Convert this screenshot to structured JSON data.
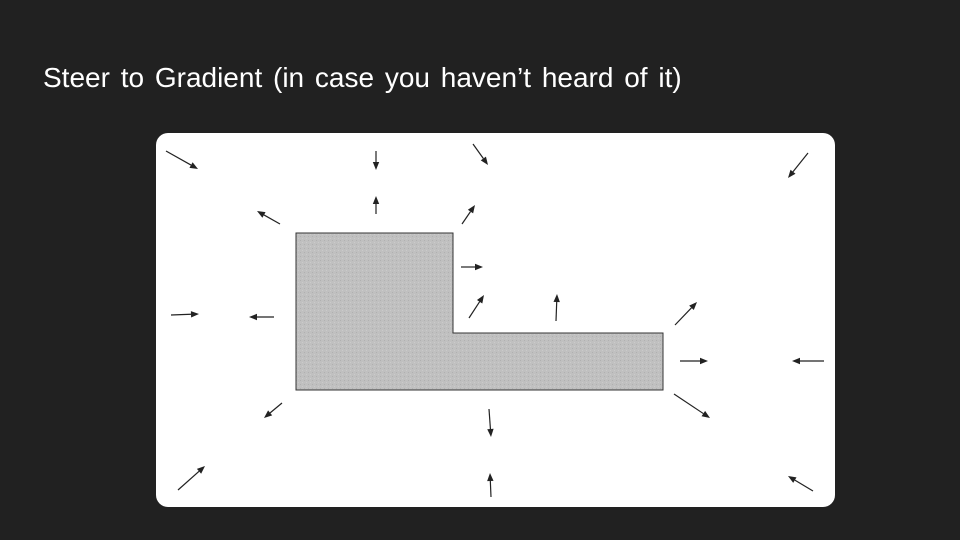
{
  "slide": {
    "title": "Steer to Gradient (in case you haven’t heard of it)",
    "background_color": "#212121"
  },
  "diagram": {
    "panel_color": "#ffffff",
    "obstacle": {
      "shape": "L-shaped polygon",
      "fill_color": "#c0c0c0",
      "stroke_color": "#333333"
    },
    "arrows": {
      "color": "#222222",
      "count": 23,
      "meaning": "gradient steering vectors around obstacle"
    }
  }
}
